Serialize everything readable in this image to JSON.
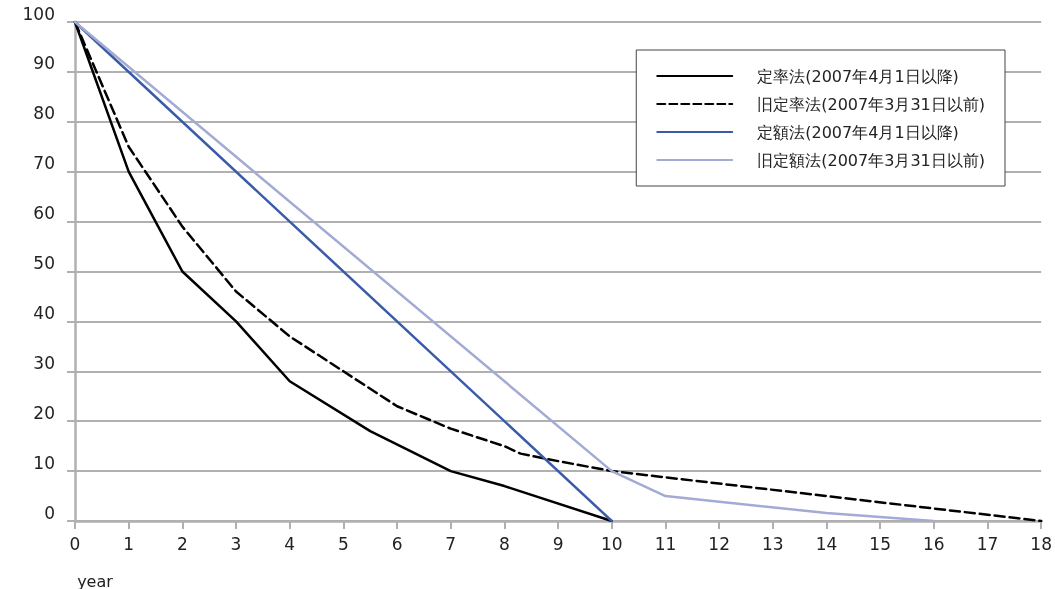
{
  "chart_data": {
    "type": "line",
    "xlabel": "year",
    "xlim": [
      0,
      18
    ],
    "xticks": [
      0,
      1,
      2,
      3,
      4,
      5,
      6,
      7,
      8,
      9,
      10,
      11,
      12,
      13,
      14,
      15,
      16,
      17,
      18
    ],
    "ylim": [
      0,
      100
    ],
    "yticks": [
      0,
      10,
      20,
      30,
      40,
      50,
      60,
      70,
      80,
      90,
      100
    ],
    "grid": "y",
    "legend": "top right",
    "marker": "none",
    "series": [
      {
        "name": "定率法(2007年4月1日以降)",
        "color": "#000000",
        "line_style": "solid",
        "x": [
          0,
          1,
          2,
          3,
          4,
          5.5,
          7,
          8,
          10
        ],
        "values": [
          100,
          70,
          50,
          40,
          28,
          18,
          10,
          7,
          0
        ]
      },
      {
        "name": "旧定率法(2007年3月31日以前)",
        "color": "#000000",
        "line_style": "dashed",
        "x": [
          0,
          1,
          2,
          3,
          4,
          5,
          6,
          7,
          8,
          8.3,
          9,
          10,
          18
        ],
        "values": [
          100,
          75,
          59,
          46,
          37,
          30,
          23,
          18.5,
          15,
          13.5,
          12,
          10,
          0
        ]
      },
      {
        "name": "定額法(2007年4月1日以降)",
        "color": "#3a5ca8",
        "line_style": "solid",
        "x": [
          0,
          10
        ],
        "values": [
          100,
          0
        ]
      },
      {
        "name": "旧定額法(2007年3月31日以前)",
        "color": "#a3aad4",
        "line_style": "solid",
        "x": [
          0,
          10,
          11,
          14,
          16
        ],
        "values": [
          100,
          10,
          5,
          1.6,
          0
        ]
      }
    ]
  }
}
